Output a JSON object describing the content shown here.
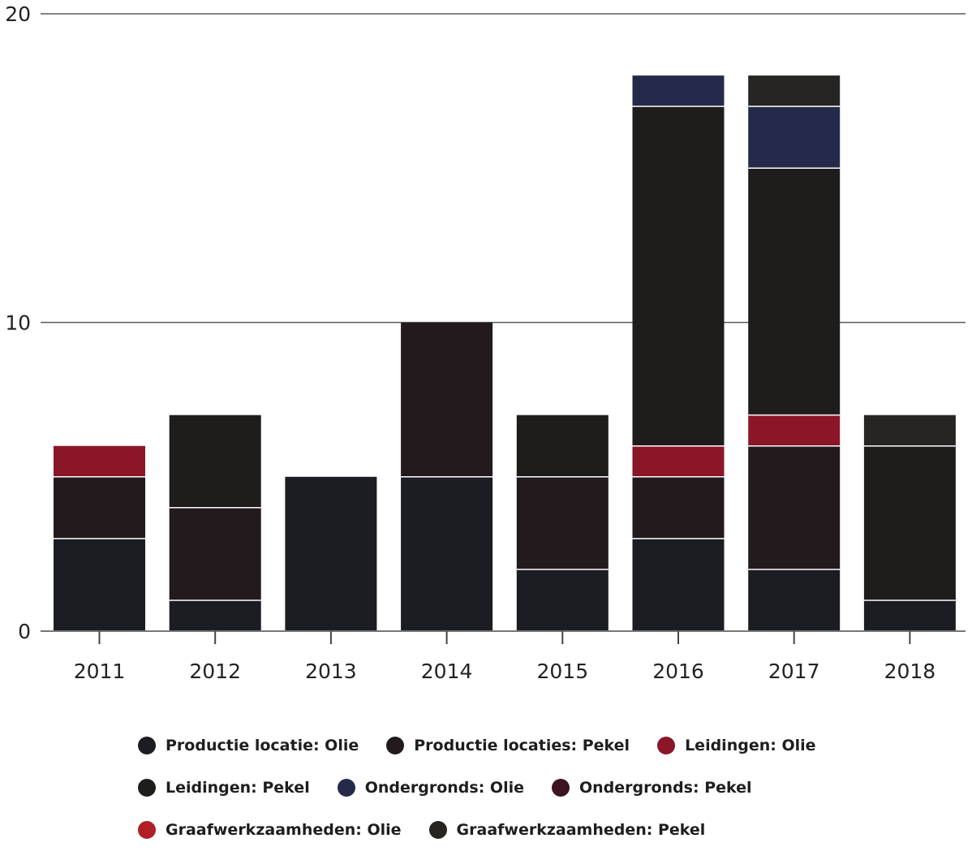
{
  "chart_data": {
    "type": "bar",
    "stacked": true,
    "categories": [
      "2011",
      "2012",
      "2013",
      "2014",
      "2015",
      "2016",
      "2017",
      "2018"
    ],
    "ylim": [
      0,
      20
    ],
    "yticks": [
      0,
      10,
      20
    ],
    "grid": true,
    "legend_position": "bottom",
    "series": [
      {
        "name": "Productie locatie: Olie",
        "color": "#1c1d22",
        "values": [
          3,
          1,
          5,
          5,
          2,
          3,
          2,
          1
        ]
      },
      {
        "name": "Productie locaties: Pekel",
        "color": "#231a1d",
        "values": [
          2,
          3,
          0,
          5,
          3,
          2,
          4,
          0
        ]
      },
      {
        "name": "Leidingen: Olie",
        "color": "#8b1628",
        "values": [
          1,
          0,
          0,
          0,
          0,
          1,
          1,
          0
        ]
      },
      {
        "name": "Leidingen: Pekel",
        "color": "#1f1c1c",
        "values": [
          0,
          3,
          0,
          0,
          2,
          11,
          8,
          5
        ]
      },
      {
        "name": "Ondergronds: Olie",
        "color": "#262a4a",
        "values": [
          0,
          0,
          0,
          0,
          0,
          1,
          2,
          0
        ]
      },
      {
        "name": "Ondergronds: Pekel",
        "color": "#3c1420",
        "values": [
          0,
          0,
          0,
          0,
          0,
          0,
          0,
          0
        ]
      },
      {
        "name": "Graafwerkzaamheden: Olie",
        "color": "#b01e26",
        "values": [
          0,
          0,
          0,
          0,
          0,
          0,
          0,
          0
        ]
      },
      {
        "name": "Graafwerkzaamheden: Pekel",
        "color": "#262523",
        "values": [
          0,
          0,
          0,
          0,
          0,
          0,
          1,
          1
        ]
      }
    ]
  }
}
